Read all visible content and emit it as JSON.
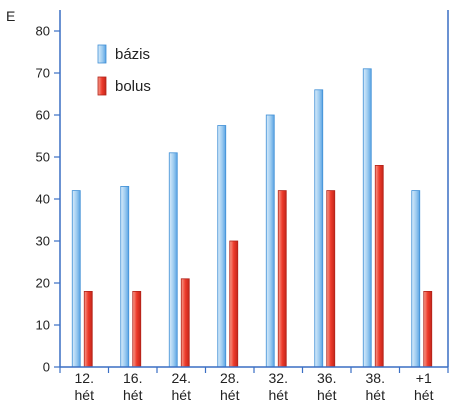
{
  "chart_data": {
    "type": "bar",
    "title": "",
    "xlabel": "",
    "ylabel": "E",
    "ylim": [
      0,
      85
    ],
    "yticks": [
      0,
      10,
      20,
      30,
      40,
      50,
      60,
      70,
      80
    ],
    "grid": false,
    "legend": "top-left",
    "categories": [
      [
        "12.",
        "hét"
      ],
      [
        "16.",
        "hét"
      ],
      [
        "24.",
        "hét"
      ],
      [
        "28.",
        "hét"
      ],
      [
        "32.",
        "hét"
      ],
      [
        "36.",
        "hét"
      ],
      [
        "38.",
        "hét"
      ],
      [
        "+1",
        "hét"
      ]
    ],
    "series": [
      {
        "name": "bázis",
        "color": "#9ccbf0",
        "edge": "#3f8fd6",
        "values": [
          42,
          43,
          51,
          57.5,
          60,
          66,
          71,
          42
        ]
      },
      {
        "name": "bolus",
        "color": "#ee3b2c",
        "edge": "#b2231a",
        "values": [
          18,
          18,
          21,
          30,
          42,
          42,
          48,
          18
        ]
      }
    ],
    "colors": {
      "axis": "#3a6fc4",
      "background": "#ffffff"
    }
  }
}
